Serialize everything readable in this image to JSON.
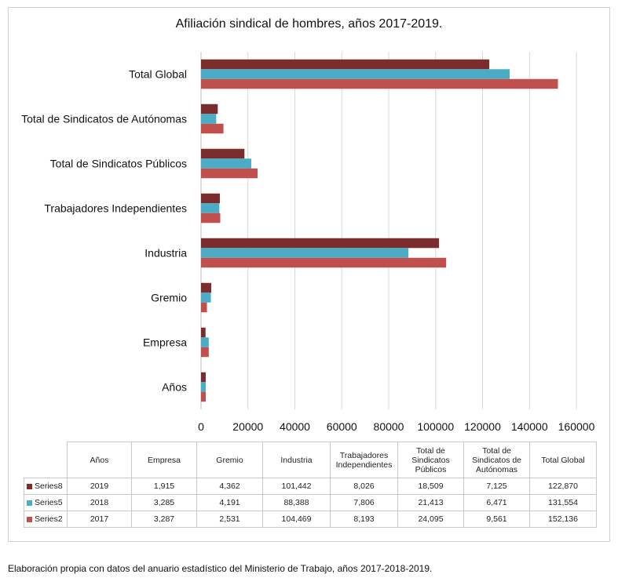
{
  "chart_data": {
    "type": "bar",
    "orientation": "horizontal",
    "title": "Afiliación sindical de hombres, años 2017-2019.",
    "xlabel": "",
    "ylabel": "",
    "xlim": [
      0,
      160000
    ],
    "xticks": [
      "0",
      "20000",
      "40000",
      "60000",
      "80000",
      "100000",
      "120000",
      "140000",
      "160000"
    ],
    "categories": [
      "Años",
      "Empresa",
      "Gremio",
      "Industria",
      "Trabajadores Independientes",
      "Total de Sindicatos Públicos",
      "Total de Sindicatos de Autónomas",
      "Total Global"
    ],
    "series": [
      {
        "name": "Series8",
        "color": "#7b2c2c",
        "values": [
          2019,
          1915,
          4362,
          101442,
          8026,
          18509,
          7125,
          122870
        ]
      },
      {
        "name": "Series5",
        "color": "#4bacc6",
        "values": [
          2018,
          3285,
          4191,
          88388,
          7806,
          21413,
          6471,
          131554
        ]
      },
      {
        "name": "Series2",
        "color": "#c0504d",
        "values": [
          2017,
          3287,
          2531,
          104469,
          8193,
          24095,
          9561,
          152136
        ]
      }
    ],
    "grid": "vertical",
    "legend": "data-table"
  },
  "table": {
    "headers": [
      "Años",
      "Empresa",
      "Gremio",
      "Industria",
      "Trabajadores Independientes",
      "Total de Sindicatos Públicos",
      "Total de Sindicatos de Autónomas",
      "Total Global"
    ],
    "rows": [
      {
        "series": "Series8",
        "color": "#7b2c2c",
        "cells": [
          "2019",
          "1,915",
          "4,362",
          "101,442",
          "8,026",
          "18,509",
          "7,125",
          "122,870"
        ]
      },
      {
        "series": "Series5",
        "color": "#4bacc6",
        "cells": [
          "2018",
          "3,285",
          "4,191",
          "88,388",
          "7,806",
          "21,413",
          "6,471",
          "131,554"
        ]
      },
      {
        "series": "Series2",
        "color": "#c0504d",
        "cells": [
          "2017",
          "3,287",
          "2,531",
          "104,469",
          "8,193",
          "24,095",
          "9,561",
          "152,136"
        ]
      }
    ]
  },
  "source": "Elaboración propia con datos del anuario estadístico del Ministerio de Trabajo, años 2017-2018-2019."
}
